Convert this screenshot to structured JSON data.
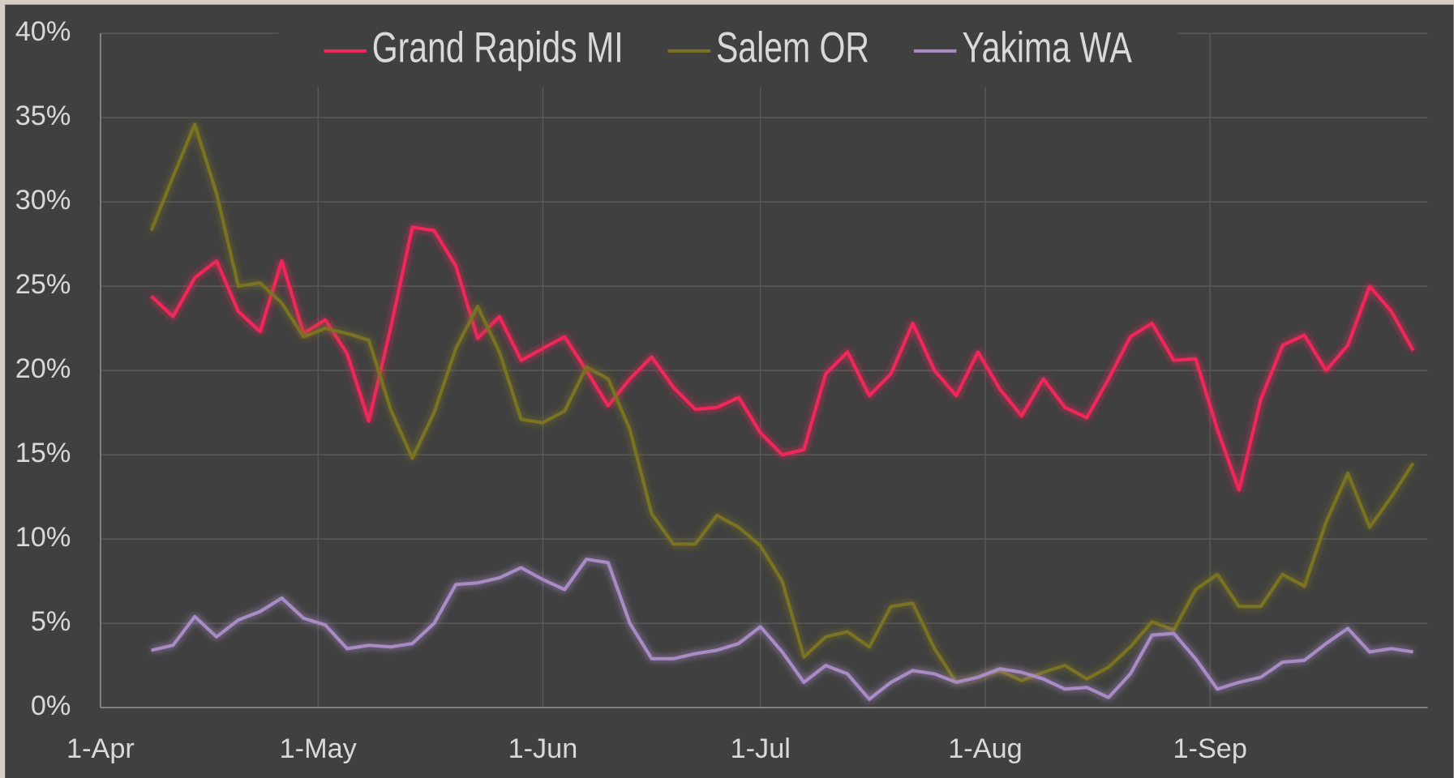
{
  "chart_data": {
    "type": "line",
    "x": [
      "04-08",
      "04-11",
      "04-14",
      "04-17",
      "04-20",
      "04-23",
      "04-26",
      "04-29",
      "05-02",
      "05-05",
      "05-08",
      "05-11",
      "05-14",
      "05-17",
      "05-20",
      "05-23",
      "05-26",
      "05-29",
      "06-01",
      "06-04",
      "06-07",
      "06-10",
      "06-13",
      "06-16",
      "06-19",
      "06-22",
      "06-25",
      "06-28",
      "07-01",
      "07-04",
      "07-07",
      "07-10",
      "07-13",
      "07-16",
      "07-19",
      "07-22",
      "07-25",
      "07-28",
      "07-31",
      "08-03",
      "08-06",
      "08-09",
      "08-12",
      "08-15",
      "08-18",
      "08-21",
      "08-24",
      "08-27",
      "08-30",
      "09-02",
      "09-05",
      "09-08",
      "09-11",
      "09-14",
      "09-17",
      "09-20",
      "09-23",
      "09-26",
      "09-29"
    ],
    "series": [
      {
        "name": "Grand Rapids MI",
        "color": "#f2265a",
        "values": [
          24.4,
          23.2,
          25.5,
          26.5,
          23.5,
          22.3,
          26.5,
          22.2,
          23,
          21,
          17,
          22.5,
          28.5,
          28.3,
          26.2,
          21.9,
          23.2,
          20.6,
          21.3,
          22,
          20,
          17.9,
          19.5,
          20.8,
          19,
          17.7,
          17.8,
          18.4,
          16.3,
          15,
          15.3,
          19.8,
          21.1,
          18.5,
          19.8,
          22.8,
          20,
          18.5,
          21.1,
          18.9,
          17.3,
          19.5,
          17.8,
          17.2,
          19.5,
          22,
          22.8,
          20.6,
          20.7,
          16.5,
          12.9,
          18.3,
          21.5,
          22.1,
          20,
          21.5,
          25,
          23.5,
          21.2
        ]
      },
      {
        "name": "Salem OR",
        "color": "#7a7322",
        "values": [
          28.3,
          31.5,
          34.6,
          30.5,
          25,
          25.2,
          24,
          22,
          22.5,
          22.2,
          21.8,
          17.7,
          14.8,
          17.5,
          21.3,
          23.8,
          21.1,
          17.1,
          16.9,
          17.6,
          20.2,
          19.5,
          16.5,
          11.5,
          9.7,
          9.7,
          11.4,
          10.7,
          9.6,
          7.5,
          3,
          4.2,
          4.5,
          3.6,
          6,
          6.2,
          3.5,
          1.5,
          1.8,
          2.2,
          1.6,
          2.1,
          2.5,
          1.7,
          2.4,
          3.6,
          5.1,
          4.6,
          7,
          7.9,
          6,
          6,
          7.9,
          7.2,
          11,
          13.9,
          10.7,
          12.5,
          14.5
        ]
      },
      {
        "name": "Yakima WA",
        "color": "#a98cc6",
        "values": [
          3.4,
          3.7,
          5.4,
          4.2,
          5.2,
          5.7,
          6.5,
          5.3,
          4.9,
          3.5,
          3.7,
          3.6,
          3.8,
          5,
          7.3,
          7.4,
          7.7,
          8.3,
          7.6,
          7,
          8.8,
          8.6,
          5,
          2.9,
          2.9,
          3.2,
          3.4,
          3.8,
          4.8,
          3.3,
          1.5,
          2.5,
          2,
          0.5,
          1.5,
          2.2,
          2,
          1.5,
          1.8,
          2.3,
          2.1,
          1.7,
          1.1,
          1.2,
          0.6,
          2,
          4.3,
          4.4,
          2.9,
          1.1,
          1.5,
          1.8,
          2.7,
          2.8,
          3.8,
          4.7,
          3.3,
          3.5,
          3.3
        ]
      }
    ],
    "xlim": [
      "04-01",
      "10-01"
    ],
    "xticks": [
      {
        "value": "04-01",
        "label": "1-Apr"
      },
      {
        "value": "05-01",
        "label": "1-May"
      },
      {
        "value": "06-01",
        "label": "1-Jun"
      },
      {
        "value": "07-01",
        "label": "1-Jul"
      },
      {
        "value": "08-01",
        "label": "1-Aug"
      },
      {
        "value": "09-01",
        "label": "1-Sep"
      }
    ],
    "ylim": [
      0,
      40
    ],
    "yticks": [
      {
        "value": 0,
        "label": "0%"
      },
      {
        "value": 5,
        "label": "5%"
      },
      {
        "value": 10,
        "label": "10%"
      },
      {
        "value": 15,
        "label": "15%"
      },
      {
        "value": 20,
        "label": "20%"
      },
      {
        "value": 25,
        "label": "25%"
      },
      {
        "value": 30,
        "label": "30%"
      },
      {
        "value": 35,
        "label": "35%"
      },
      {
        "value": 40,
        "label": "40%"
      }
    ],
    "grid": true,
    "legend": "top"
  }
}
